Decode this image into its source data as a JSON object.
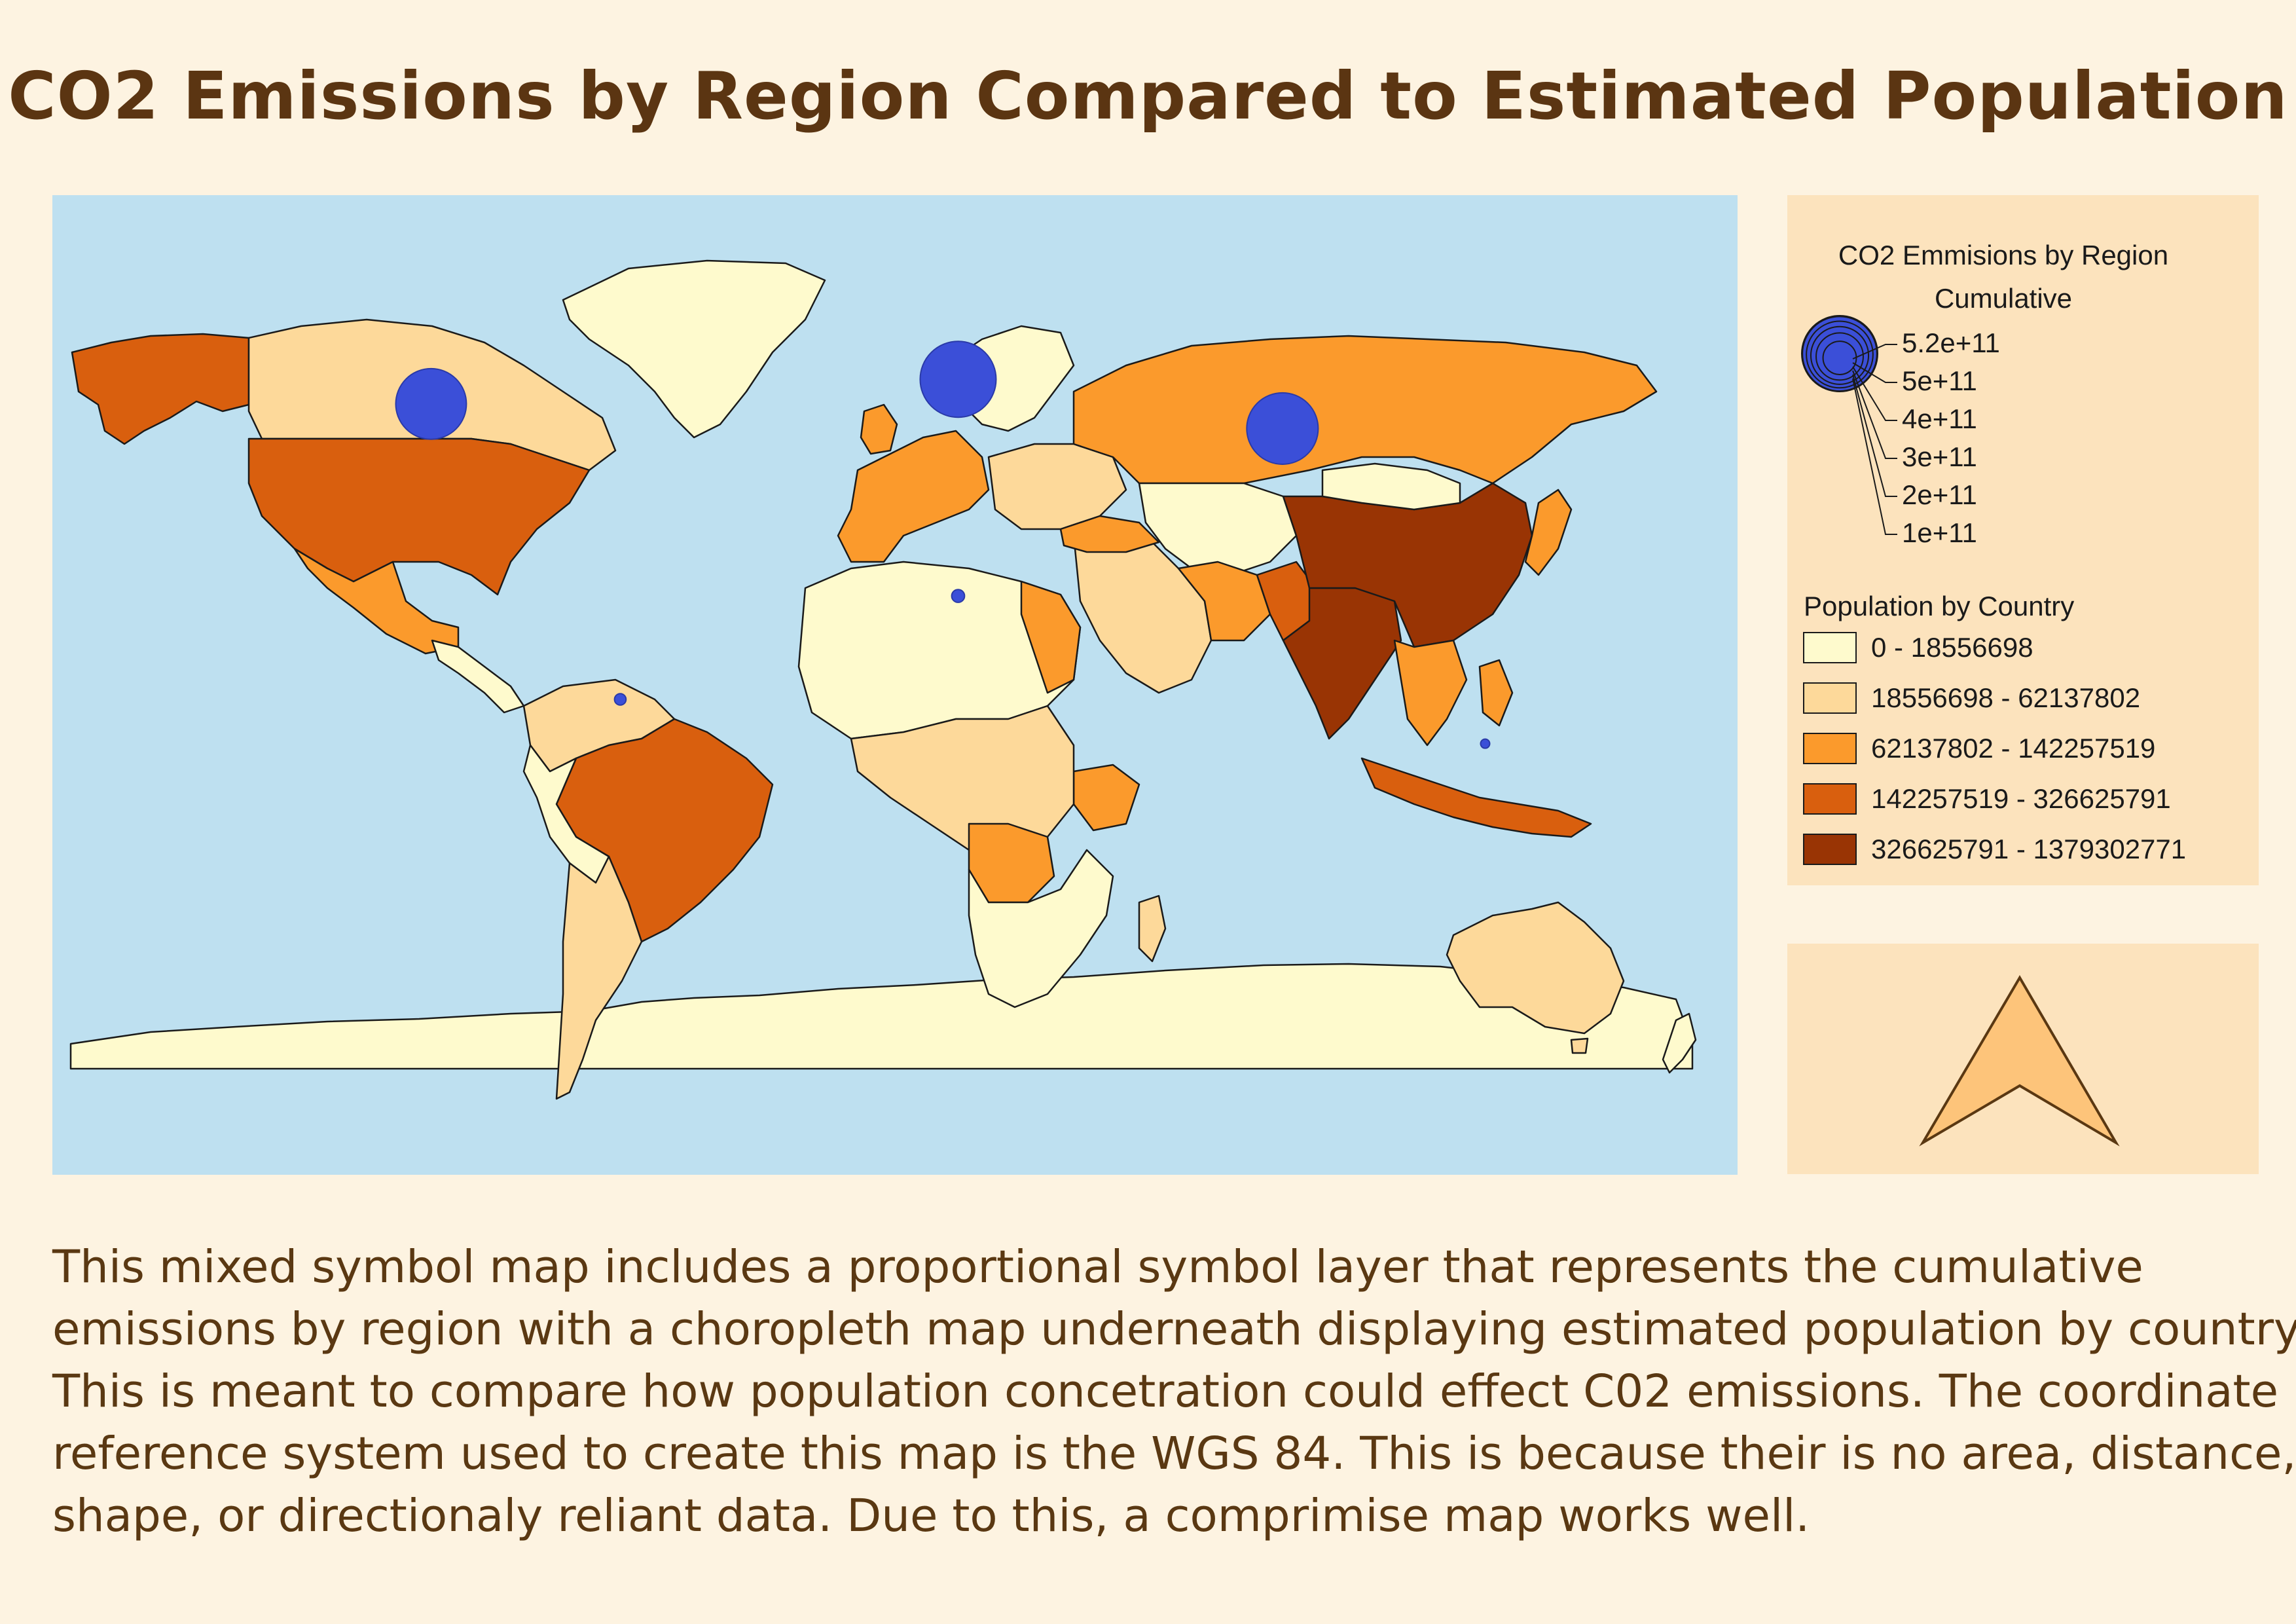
{
  "title": "CO2 Emissions by Region Compared to Estimated Population",
  "colors": {
    "background": "#fdf3e1",
    "ocean": "#bee0f0",
    "panel": "#fce3bd",
    "symbol": "#3b4fd8",
    "class_1": "#fefacd",
    "class_2": "#fdd99a",
    "class_3": "#fb9a2c",
    "class_4": "#d95f0e",
    "class_5": "#993404",
    "north_arrow": "#fdc47a"
  },
  "legend": {
    "symbol_title_line1": "CO2 Emmisions by Region",
    "symbol_title_line2": "Cumulative",
    "symbol_values": [
      "5.2e+11",
      "5e+11",
      "4e+11",
      "3e+11",
      "2e+11",
      "1e+11"
    ],
    "choropleth_title": "Population by Country",
    "classes": [
      {
        "label": "0 - 18556698",
        "color": "#fefacd"
      },
      {
        "label": "18556698 - 62137802",
        "color": "#fdd99a"
      },
      {
        "label": "62137802 - 142257519",
        "color": "#fb9a2c"
      },
      {
        "label": "142257519 - 326625791",
        "color": "#d95f0e"
      },
      {
        "label": "326625791 - 1379302771",
        "color": "#993404"
      }
    ]
  },
  "map": {
    "crs": "WGS 84",
    "north_arrow_icon": "north-arrow-icon",
    "region_symbols": [
      {
        "region": "North America",
        "lon": -100,
        "lat": 45,
        "value": 450000000000.0
      },
      {
        "region": "Europe",
        "lon": 17,
        "lat": 50,
        "value": 520000000000.0
      },
      {
        "region": "Asia",
        "lon": 89,
        "lat": 40,
        "value": 460000000000.0
      },
      {
        "region": "Africa",
        "lon": 17,
        "lat": 6,
        "value": 15000000000.0
      },
      {
        "region": "South America",
        "lon": -58,
        "lat": -15,
        "value": 12000000000.0
      },
      {
        "region": "Oceania",
        "lon": 134,
        "lat": -24,
        "value": 1500000000.0
      }
    ]
  },
  "description": [
    "This mixed symbol map includes a proportional symbol layer that represents the cumulative",
    "emissions by region with a choropleth map underneath displaying estimated population by country.",
    "This is meant to compare how population concetration could effect C02 emissions. The coordinate",
    "reference system used to create this map is the WGS 84. This is because their is no area, distance,",
    "shape, or directionaly reliant data. Due to this, a comprimise map works well."
  ]
}
